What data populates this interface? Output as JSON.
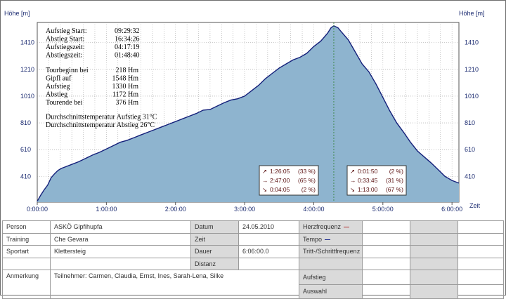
{
  "chart_data": {
    "type": "area",
    "ylabel_left": "Höhe [m]",
    "ylabel_right": "Höhe [m]",
    "xlabel": "Zeit",
    "ylim": [
      218,
      1560
    ],
    "xlim": [
      0,
      6.1
    ],
    "yticks": [
      410,
      610,
      810,
      1010,
      1210,
      1410
    ],
    "ytick_labels": [
      "410",
      "610",
      "810",
      "1010",
      "1210",
      "1410"
    ],
    "xticks": [
      0,
      1,
      2,
      3,
      4,
      5,
      6
    ],
    "xtick_labels": [
      "0:00:00",
      "1:00:00",
      "2:00:00",
      "3:00:00",
      "4:00:00",
      "5:00:00",
      "6:00:00"
    ],
    "peak_x": 4.29,
    "grid": true,
    "fill_color": "#8eb4cf",
    "line_color": "#14207a",
    "series": [
      {
        "x": [
          0,
          0.05,
          0.1,
          0.15,
          0.2,
          0.25,
          0.3,
          0.35,
          0.4,
          0.5,
          0.6,
          0.7,
          0.8,
          0.9,
          1.0,
          1.1,
          1.2,
          1.3,
          1.4,
          1.5,
          1.6,
          1.7,
          1.8,
          1.9,
          2.0,
          2.1,
          2.2,
          2.3,
          2.4,
          2.5,
          2.6,
          2.7,
          2.8,
          2.9,
          3.0,
          3.1,
          3.2,
          3.3,
          3.4,
          3.5,
          3.6,
          3.7,
          3.8,
          3.9,
          4.0,
          4.1,
          4.2,
          4.25,
          4.29,
          4.35,
          4.4,
          4.5,
          4.6,
          4.7,
          4.8,
          4.9,
          5.0,
          5.1,
          5.2,
          5.3,
          5.4,
          5.5,
          5.6,
          5.7,
          5.8,
          5.9,
          6.0,
          6.1
        ],
        "y": [
          225,
          270,
          310,
          345,
          400,
          430,
          455,
          470,
          480,
          500,
          520,
          545,
          570,
          590,
          615,
          640,
          665,
          680,
          700,
          720,
          740,
          760,
          780,
          800,
          820,
          840,
          860,
          880,
          905,
          910,
          935,
          960,
          980,
          990,
          1010,
          1050,
          1090,
          1140,
          1180,
          1220,
          1250,
          1280,
          1300,
          1330,
          1380,
          1420,
          1480,
          1520,
          1535,
          1520,
          1490,
          1430,
          1340,
          1250,
          1190,
          1100,
          1000,
          900,
          810,
          740,
          665,
          600,
          555,
          510,
          460,
          410,
          380,
          360
        ]
      }
    ],
    "annotations_left": [
      {
        "label": "Aufstieg Start:",
        "value": "09:29:32"
      },
      {
        "label": "Abstieg Start:",
        "value": "16:34:26"
      },
      {
        "label": "Aufstiegszeit:",
        "value": "04:17:19"
      },
      {
        "label": "Abstiegszeit:",
        "value": "01:48:40"
      }
    ],
    "annotations_left2": [
      {
        "label": "Tourbeginn bei",
        "value": "218 Hm"
      },
      {
        "label": "Gipfl auf",
        "value": "1548 Hm"
      },
      {
        "label": "Aufstieg",
        "value": "1330 Hm"
      },
      {
        "label": "Abstieg",
        "value": "1172 Hm"
      },
      {
        "label": "Tourende bei",
        "value": "376 Hm"
      }
    ],
    "annotations_temp": [
      "Durchschnittstemperatur Aufstieg 31°C",
      "Durchschnittstemperatur Abstieg  26°C"
    ],
    "stats_ascent": [
      {
        "icon": "↗",
        "time": "1:26:05",
        "pct": "(33 %)"
      },
      {
        "icon": "→",
        "time": "2:47:00",
        "pct": "(65 %)"
      },
      {
        "icon": "↘",
        "time": "0:04:05",
        "pct": "(2 %)"
      }
    ],
    "stats_descent": [
      {
        "icon": "↗",
        "time": "0:01:50",
        "pct": "(2 %)"
      },
      {
        "icon": "→",
        "time": "0:33:45",
        "pct": "(31 %)"
      },
      {
        "icon": "↘",
        "time": "1:13:00",
        "pct": "(67 %)"
      }
    ]
  },
  "table": {
    "person_label": "Person",
    "person_value": "ASKÖ Gipfihupfa",
    "training_label": "Training",
    "training_value": "Che Gevara",
    "sport_label": "Sportart",
    "sport_value": "Klettersteig",
    "note_label": "Anmerkung",
    "note_value": "Teilnehmer: Carmen, Claudia, Ernst, Ines, Sarah-Lena, Silke",
    "date_label": "Datum",
    "date_value": "24.05.2010",
    "time_label": "Zeit",
    "time_value": "",
    "duration_label": "Dauer",
    "duration_value": "6:06:00.0",
    "distance_label": "Distanz",
    "distance_value": "",
    "hr_label": "Herzfrequenz",
    "hr_color": "#b03030",
    "tempo_label": "Tempo",
    "tempo_color": "#1a2a90",
    "cadence_label": "Tritt-/Schrittfrequenz",
    "cadence_color": "#2a8a2a",
    "ascent_label": "Aufstieg",
    "selection_label": "Auswahl"
  }
}
